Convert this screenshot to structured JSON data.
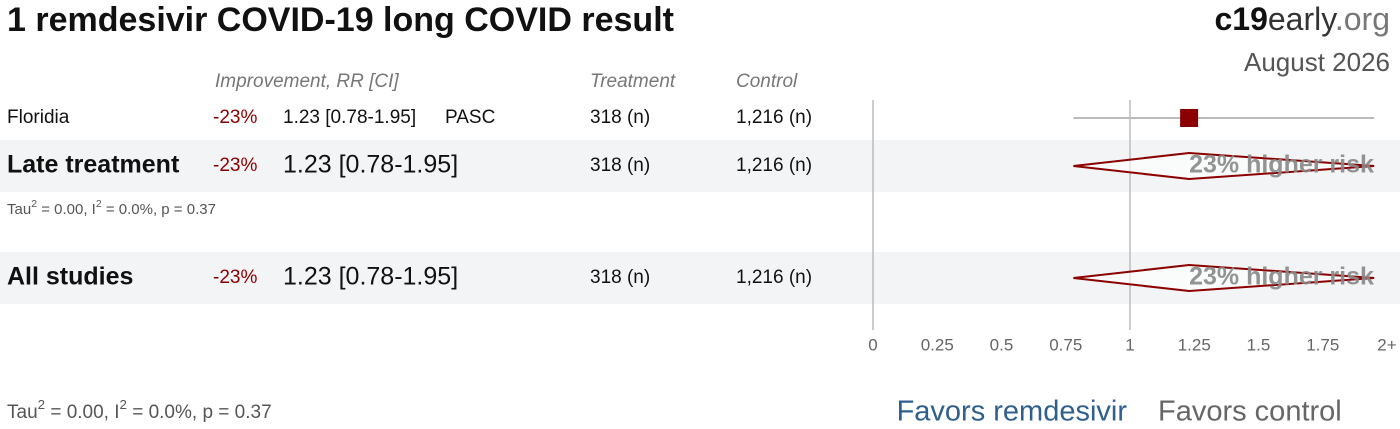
{
  "chart_data": {
    "type": "forest",
    "title": "1 remdesivir COVID-19 long COVID result",
    "brand": [
      "c19",
      "early",
      ".org"
    ],
    "date": "August 2026",
    "headers": {
      "effect": "Improvement, RR [CI]",
      "treatment": "Treatment",
      "control": "Control"
    },
    "studies": [
      {
        "name": "Floridia",
        "improvement": "-23%",
        "rr_label": "1.23 [0.78-1.95]",
        "outcome": "PASC",
        "treatment": "318 (n)",
        "control": "1,216 (n)",
        "rr": 1.23,
        "lo": 0.78,
        "hi": 1.95,
        "color": "#8b0000"
      }
    ],
    "summaries": [
      {
        "name": "Late treatment",
        "improvement": "-23%",
        "rr_label": "1.23 [0.78-1.95]",
        "treatment": "318 (n)",
        "control": "1,216 (n)",
        "rr": 1.23,
        "lo": 0.78,
        "hi": 1.95,
        "effect_label": "23% higher risk",
        "heterogeneity": [
          "Tau",
          "2",
          " = 0.00, I",
          "2",
          " = 0.0%, p = 0.37"
        ]
      },
      {
        "name": "All studies",
        "improvement": "-23%",
        "rr_label": "1.23 [0.78-1.95]",
        "treatment": "318 (n)",
        "control": "1,216 (n)",
        "rr": 1.23,
        "lo": 0.78,
        "hi": 1.95,
        "effect_label": "23% higher risk",
        "heterogeneity": [
          "Tau",
          "2",
          " = 0.00, I",
          "2",
          " = 0.0%, p = 0.37"
        ]
      }
    ],
    "color": "#8b0000",
    "xlim": [
      0,
      2
    ],
    "xticks": [
      0,
      0.25,
      0.5,
      0.75,
      1,
      1.25,
      1.5,
      1.75,
      {
        "value": 2,
        "label": "2+"
      }
    ],
    "favors": [
      "Favors remdesivir",
      "Favors control"
    ],
    "favors_colors": [
      "#2f5f8f",
      "#666666"
    ]
  }
}
